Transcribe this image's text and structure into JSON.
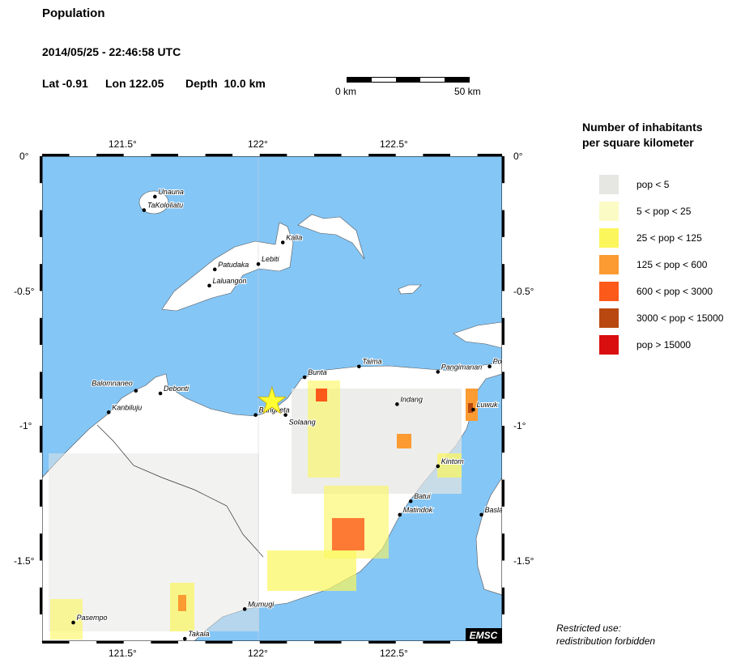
{
  "header": {
    "title": "Population",
    "datetime": "2014/05/25 - 22:46:58 UTC",
    "lat": "Lat -0.91",
    "lon": "Lon 122.05",
    "depth": "Depth  10.0 km"
  },
  "scalebar": {
    "start": "0 km",
    "end": "50 km"
  },
  "axes": {
    "lon_ticks": [
      "121.5°",
      "122°",
      "122.5°"
    ],
    "lat_ticks": [
      "0°",
      "-0.5°",
      "-1°",
      "-1.5°"
    ]
  },
  "epicenter": {
    "lat": -0.91,
    "lon": 122.05,
    "color": "#ffff33"
  },
  "cities": [
    {
      "name": "Unauna",
      "lon": 121.62,
      "lat": -0.15
    },
    {
      "name": "TaKololiatu",
      "lon": 121.58,
      "lat": -0.2
    },
    {
      "name": "Kalia",
      "lon": 122.09,
      "lat": -0.32
    },
    {
      "name": "Lebiti",
      "lon": 122.0,
      "lat": -0.4
    },
    {
      "name": "Patudaka",
      "lon": 121.84,
      "lat": -0.42
    },
    {
      "name": "Laluangon",
      "lon": 121.82,
      "lat": -0.48
    },
    {
      "name": "Taima",
      "lon": 122.37,
      "lat": -0.78
    },
    {
      "name": "Pangimanan",
      "lon": 122.66,
      "lat": -0.8
    },
    {
      "name": "Po",
      "lon": 122.85,
      "lat": -0.78
    },
    {
      "name": "Bunta",
      "lon": 122.17,
      "lat": -0.82
    },
    {
      "name": "Balomnaneo",
      "lon": 121.55,
      "lat": -0.87
    },
    {
      "name": "Debonti",
      "lon": 121.64,
      "lat": -0.88
    },
    {
      "name": "Kanbiluju",
      "lon": 121.45,
      "lat": -0.95
    },
    {
      "name": "Indang",
      "lon": 122.51,
      "lat": -0.92
    },
    {
      "name": "Luwuk",
      "lon": 122.79,
      "lat": -0.94
    },
    {
      "name": "Bangketa",
      "lon": 121.99,
      "lat": -0.96
    },
    {
      "name": "Solaang",
      "lon": 122.1,
      "lat": -0.96
    },
    {
      "name": "Kintom",
      "lon": 122.66,
      "lat": -1.15
    },
    {
      "name": "Batui",
      "lon": 122.56,
      "lat": -1.28
    },
    {
      "name": "Matindok",
      "lon": 122.52,
      "lat": -1.33
    },
    {
      "name": "Basla",
      "lon": 122.82,
      "lat": -1.33
    },
    {
      "name": "Mumugi",
      "lon": 121.95,
      "lat": -1.68
    },
    {
      "name": "Pasempo",
      "lon": 121.32,
      "lat": -1.73
    },
    {
      "name": "Takala",
      "lon": 121.73,
      "lat": -1.79
    }
  ],
  "legend": {
    "title_line1": "Number of inhabitants",
    "title_line2": "per square kilometer",
    "items": [
      {
        "label": "pop < 5",
        "color": "#e6e6e3"
      },
      {
        "label": "5 < pop < 25",
        "color": "#fbfbc5"
      },
      {
        "label": "25 < pop < 125",
        "color": "#fbf65b"
      },
      {
        "label": "125 < pop < 600",
        "color": "#fb9b32"
      },
      {
        "label": "600 < pop < 3000",
        "color": "#fc5a1a"
      },
      {
        "label": "3000 < pop < 15000",
        "color": "#b8480f"
      },
      {
        "label": "pop > 15000",
        "color": "#d90f0f"
      }
    ]
  },
  "colors": {
    "sea": "#84c6f6",
    "land": "#ffffff"
  },
  "watermark": "EMSC",
  "note_line1": "Restricted use:",
  "note_line2": "redistribution forbidden"
}
